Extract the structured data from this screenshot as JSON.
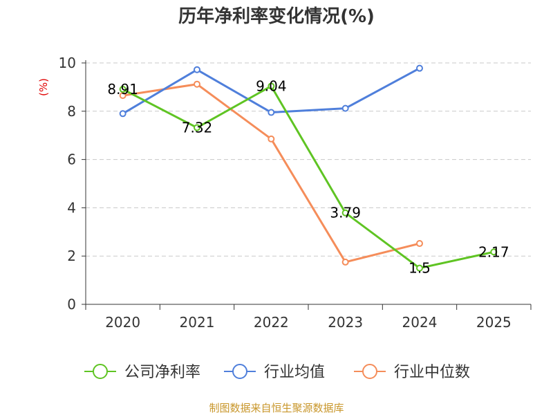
{
  "chart_data": {
    "type": "line",
    "title": "历年净利率变化情况(%)",
    "ylabel": "(%)",
    "xlabel": "",
    "categories": [
      "2020",
      "2021",
      "2022",
      "2023",
      "2024",
      "2025"
    ],
    "ylim": [
      0,
      10
    ],
    "yticks": [
      "0",
      "2",
      "4",
      "6",
      "8",
      "10"
    ],
    "grid": true,
    "legend_position": "bottom",
    "series": [
      {
        "name": "公司净利率",
        "color": "#5fc423",
        "values": [
          8.91,
          7.32,
          9.04,
          3.79,
          1.5,
          2.17
        ],
        "labels": [
          "8.91",
          "7.32",
          "9.04",
          "3.79",
          "1.5",
          "2.17"
        ]
      },
      {
        "name": "行业均值",
        "color": "#4f7fdb",
        "values": [
          7.9,
          9.72,
          7.95,
          8.12,
          9.78,
          null
        ]
      },
      {
        "name": "行业中位数",
        "color": "#f58d5a",
        "values": [
          8.65,
          9.12,
          6.85,
          1.75,
          2.52,
          null
        ]
      }
    ],
    "source": "制图数据来自恒生聚源数据库"
  }
}
